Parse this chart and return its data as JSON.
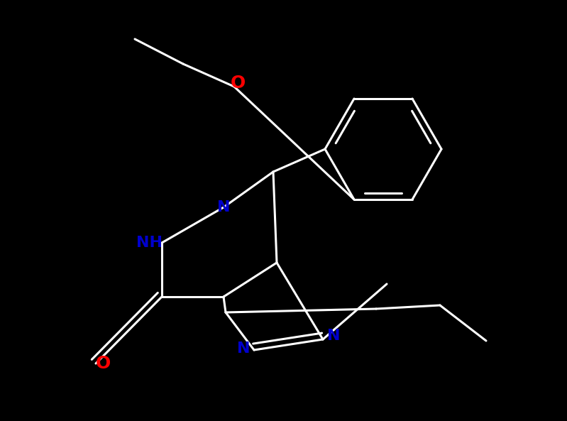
{
  "background_color": "#000000",
  "bond_color": "#ffffff",
  "N_color": "#0000cd",
  "O_color": "#ff0000",
  "line_width": 2.2,
  "font_size": 15,
  "figsize": [
    7.99,
    5.93
  ],
  "dpi": 100,
  "xlim": [
    0,
    799
  ],
  "ylim": [
    0,
    593
  ]
}
